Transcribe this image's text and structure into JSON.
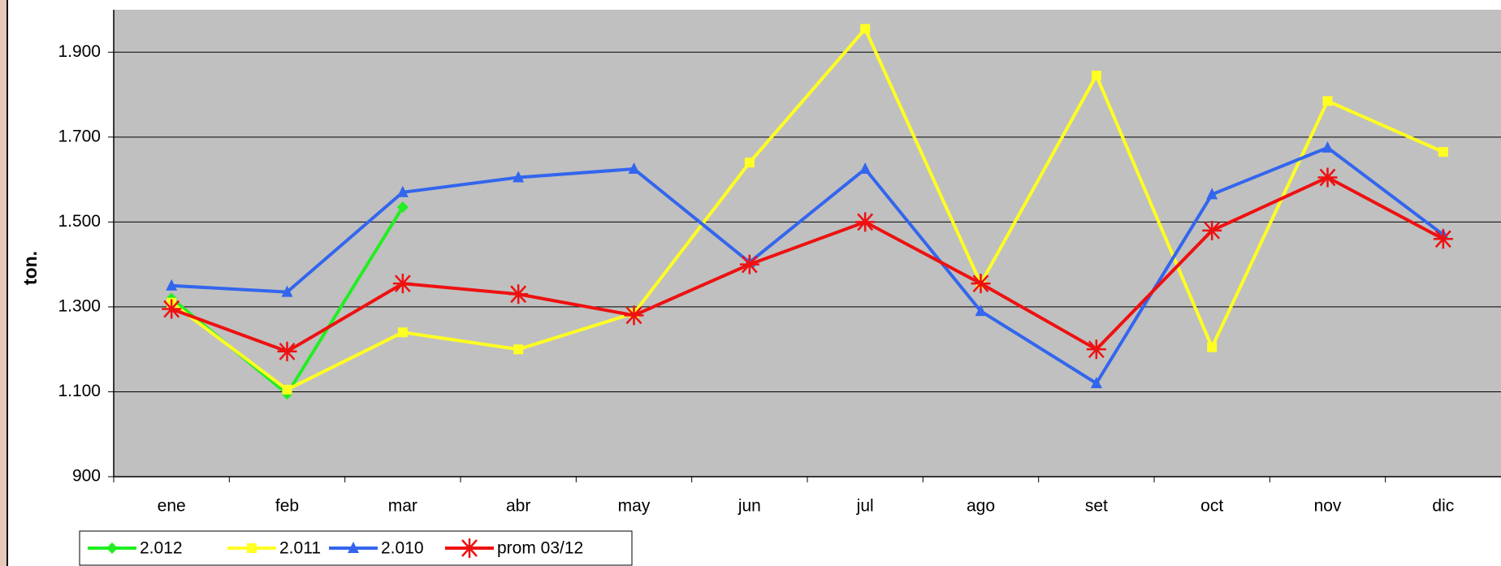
{
  "chart_data": {
    "type": "line",
    "y_label": "ton.",
    "categories": [
      "ene",
      "feb",
      "mar",
      "abr",
      "may",
      "jun",
      "jul",
      "ago",
      "set",
      "oct",
      "nov",
      "dic"
    ],
    "series": [
      {
        "name": "2.012",
        "color": "#22ee22",
        "marker": "diamond",
        "values": [
          1320,
          1095,
          1535,
          null,
          null,
          null,
          null,
          null,
          null,
          null,
          null,
          null
        ]
      },
      {
        "name": "2.011",
        "color": "#ffff22",
        "marker": "square",
        "values": [
          1310,
          1105,
          1240,
          1200,
          1285,
          1640,
          1955,
          1355,
          1845,
          1205,
          1785,
          1665
        ]
      },
      {
        "name": "2.010",
        "color": "#3366ee",
        "marker": "triangle",
        "values": [
          1350,
          1335,
          1570,
          1605,
          1625,
          1405,
          1625,
          1290,
          1120,
          1565,
          1675,
          1470
        ]
      },
      {
        "name": "prom 03/12",
        "color": "#ee1111",
        "marker": "star",
        "values": [
          1295,
          1195,
          1355,
          1330,
          1280,
          1400,
          1500,
          1355,
          1200,
          1480,
          1605,
          1460
        ]
      }
    ],
    "ylim": [
      900,
      2000
    ],
    "yticks": [
      {
        "value": 900,
        "label": "900"
      },
      {
        "value": 1100,
        "label": "1.100"
      },
      {
        "value": 1300,
        "label": "1.300"
      },
      {
        "value": 1500,
        "label": "1.500"
      },
      {
        "value": 1700,
        "label": "1.700"
      },
      {
        "value": 1900,
        "label": "1.900"
      }
    ],
    "grid": true
  }
}
